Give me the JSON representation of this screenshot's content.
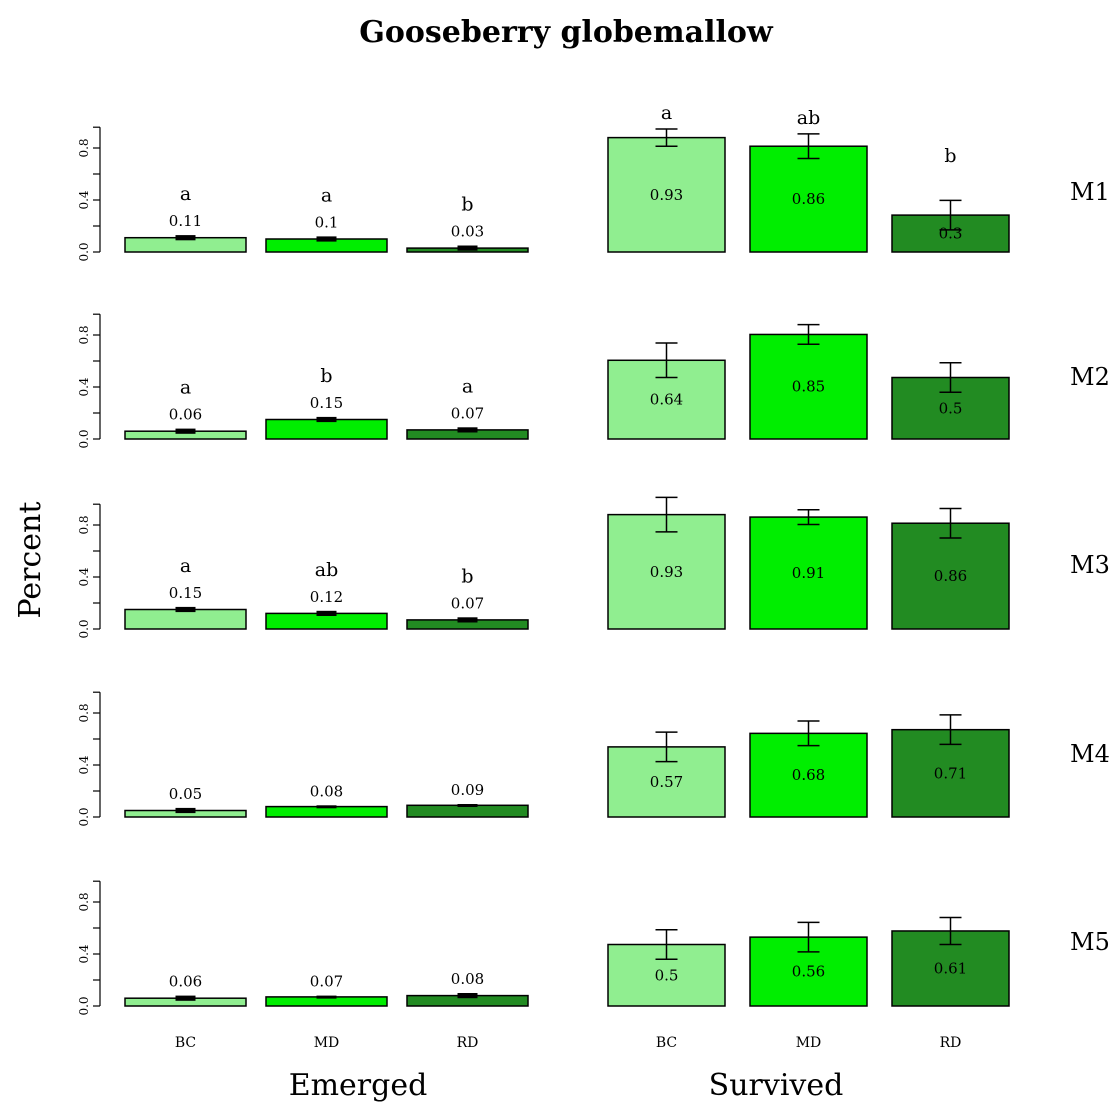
{
  "title": "Gooseberry globemallow",
  "ylabel": "Percent",
  "colors": {
    "BC": "#90ee90",
    "MD": "#00ee00",
    "RD": "#228b22"
  },
  "chart_data": {
    "type": "bar",
    "title": "Gooseberry globemallow",
    "ylabel": "Percent",
    "ylim": [
      0,
      1
    ],
    "yticks": [
      "0.0",
      "0.4",
      "0.8"
    ],
    "categories": [
      "BC",
      "MD",
      "RD"
    ],
    "columns": [
      "Emerged",
      "Survived"
    ],
    "rows": [
      "M1",
      "M2",
      "M3",
      "M4",
      "M5"
    ],
    "panels": [
      {
        "row": "M1",
        "column": "Emerged",
        "values": [
          0.11,
          0.1,
          0.03
        ],
        "errors": [
          0.02,
          0.02,
          0.02
        ],
        "labels": [
          "0.11",
          "0.1",
          "0.03"
        ],
        "letters": [
          "a",
          "a",
          "b"
        ]
      },
      {
        "row": "M1",
        "column": "Survived",
        "values": [
          0.93,
          0.86,
          0.3
        ],
        "errors": [
          0.07,
          0.1,
          0.12
        ],
        "labels": [
          "0.93",
          "0.86",
          "0.3"
        ],
        "letters": [
          "a",
          "ab",
          "b"
        ]
      },
      {
        "row": "M2",
        "column": "Emerged",
        "values": [
          0.06,
          0.15,
          0.07
        ],
        "errors": [
          0.02,
          0.02,
          0.02
        ],
        "labels": [
          "0.06",
          "0.15",
          "0.07"
        ],
        "letters": [
          "a",
          "b",
          "a"
        ]
      },
      {
        "row": "M2",
        "column": "Survived",
        "values": [
          0.64,
          0.85,
          0.5
        ],
        "errors": [
          0.14,
          0.08,
          0.12
        ],
        "labels": [
          "0.64",
          "0.85",
          "0.5"
        ],
        "letters": [
          "",
          "",
          ""
        ]
      },
      {
        "row": "M3",
        "column": "Emerged",
        "values": [
          0.15,
          0.12,
          0.07
        ],
        "errors": [
          0.02,
          0.02,
          0.02
        ],
        "labels": [
          "0.15",
          "0.12",
          "0.07"
        ],
        "letters": [
          "a",
          "ab",
          "b"
        ]
      },
      {
        "row": "M3",
        "column": "Survived",
        "values": [
          0.93,
          0.91,
          0.86
        ],
        "errors": [
          0.14,
          0.06,
          0.12
        ],
        "labels": [
          "0.93",
          "0.91",
          "0.86"
        ],
        "letters": [
          "",
          "",
          ""
        ]
      },
      {
        "row": "M4",
        "column": "Emerged",
        "values": [
          0.05,
          0.08,
          0.09
        ],
        "errors": [
          0.02,
          0.01,
          0.01
        ],
        "labels": [
          "0.05",
          "0.08",
          "0.09"
        ],
        "letters": [
          "",
          "",
          ""
        ]
      },
      {
        "row": "M4",
        "column": "Survived",
        "values": [
          0.57,
          0.68,
          0.71
        ],
        "errors": [
          0.12,
          0.1,
          0.12
        ],
        "labels": [
          "0.57",
          "0.68",
          "0.71"
        ],
        "letters": [
          "",
          "",
          ""
        ]
      },
      {
        "row": "M5",
        "column": "Emerged",
        "values": [
          0.06,
          0.07,
          0.08
        ],
        "errors": [
          0.02,
          0.01,
          0.02
        ],
        "labels": [
          "0.06",
          "0.07",
          "0.08"
        ],
        "letters": [
          "",
          "",
          ""
        ]
      },
      {
        "row": "M5",
        "column": "Survived",
        "values": [
          0.5,
          0.56,
          0.61
        ],
        "errors": [
          0.12,
          0.12,
          0.11
        ],
        "labels": [
          "0.5",
          "0.56",
          "0.61"
        ],
        "letters": [
          "",
          "",
          ""
        ]
      }
    ]
  }
}
